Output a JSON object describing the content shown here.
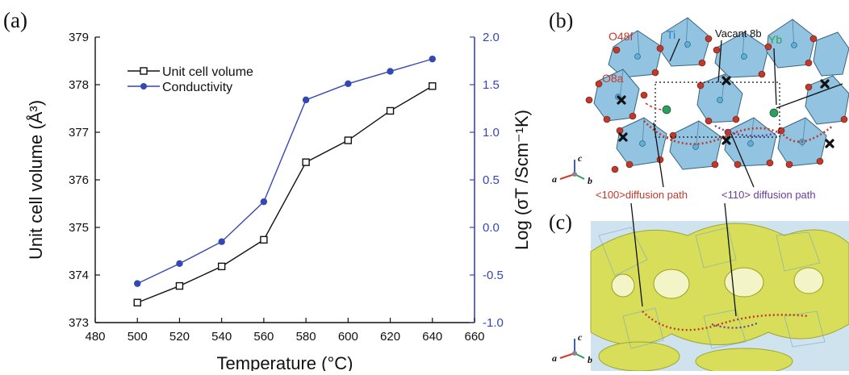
{
  "panel_a": {
    "label": "(a)",
    "legend": {
      "volume_label": "Unit cell volume",
      "conductivity_label": "Conductivity"
    }
  },
  "panel_b": {
    "label": "(b)",
    "atom_labels": {
      "o48f": "O48f",
      "ti": "Ti",
      "vacant": "Vacant 8b",
      "yb": "Yb",
      "o8a": "O8a"
    },
    "path_labels": {
      "p100": "<100>diffusion path",
      "p110": "<110> diffusion path"
    },
    "axes": {
      "a": "a",
      "b": "b",
      "c": "c"
    }
  },
  "panel_c": {
    "label": "(c)",
    "axes": {
      "a": "a",
      "b": "b",
      "c": "c"
    }
  },
  "colors": {
    "volume": "#111111",
    "conductivity": "#3547b3",
    "o48f_label": "#c0392b",
    "ti_label": "#2f7fbf",
    "yb_label": "#2e9e5b",
    "path_100": "#c0392b",
    "path_110": "#6a3d9a",
    "polyhedra": "#7fb6d9",
    "isosurface": "#d9de4e"
  },
  "chart_data": {
    "type": "line",
    "title": "",
    "xlabel": "Temperature (°C)",
    "ylabel": "Unit cell volume (Å³)",
    "y2label": "Log (σT /Scm⁻¹K)",
    "xlim": [
      480,
      660
    ],
    "ylim": [
      373,
      379
    ],
    "y2lim": [
      -1.0,
      2.0
    ],
    "xticks": [
      "480",
      "500",
      "520",
      "540",
      "560",
      "580",
      "600",
      "620",
      "640",
      "660"
    ],
    "yticks": [
      "373",
      "374",
      "375",
      "376",
      "377",
      "378",
      "379"
    ],
    "y2ticks": [
      "-1.0",
      "-0.5",
      "0.0",
      "0.5",
      "1.0",
      "1.5",
      "2.0"
    ],
    "grid": false,
    "legend_position": "top-left",
    "x": [
      500,
      520,
      540,
      560,
      580,
      600,
      620,
      640
    ],
    "series": [
      {
        "name": "Unit cell volume",
        "axis": "left",
        "marker": "open-square",
        "values": [
          373.42,
          373.77,
          374.18,
          374.74,
          376.37,
          376.83,
          377.45,
          377.97
        ]
      },
      {
        "name": "Conductivity",
        "axis": "right",
        "marker": "filled-circle",
        "values": [
          -0.59,
          -0.38,
          -0.15,
          0.27,
          1.34,
          1.51,
          1.64,
          1.77
        ]
      }
    ]
  }
}
